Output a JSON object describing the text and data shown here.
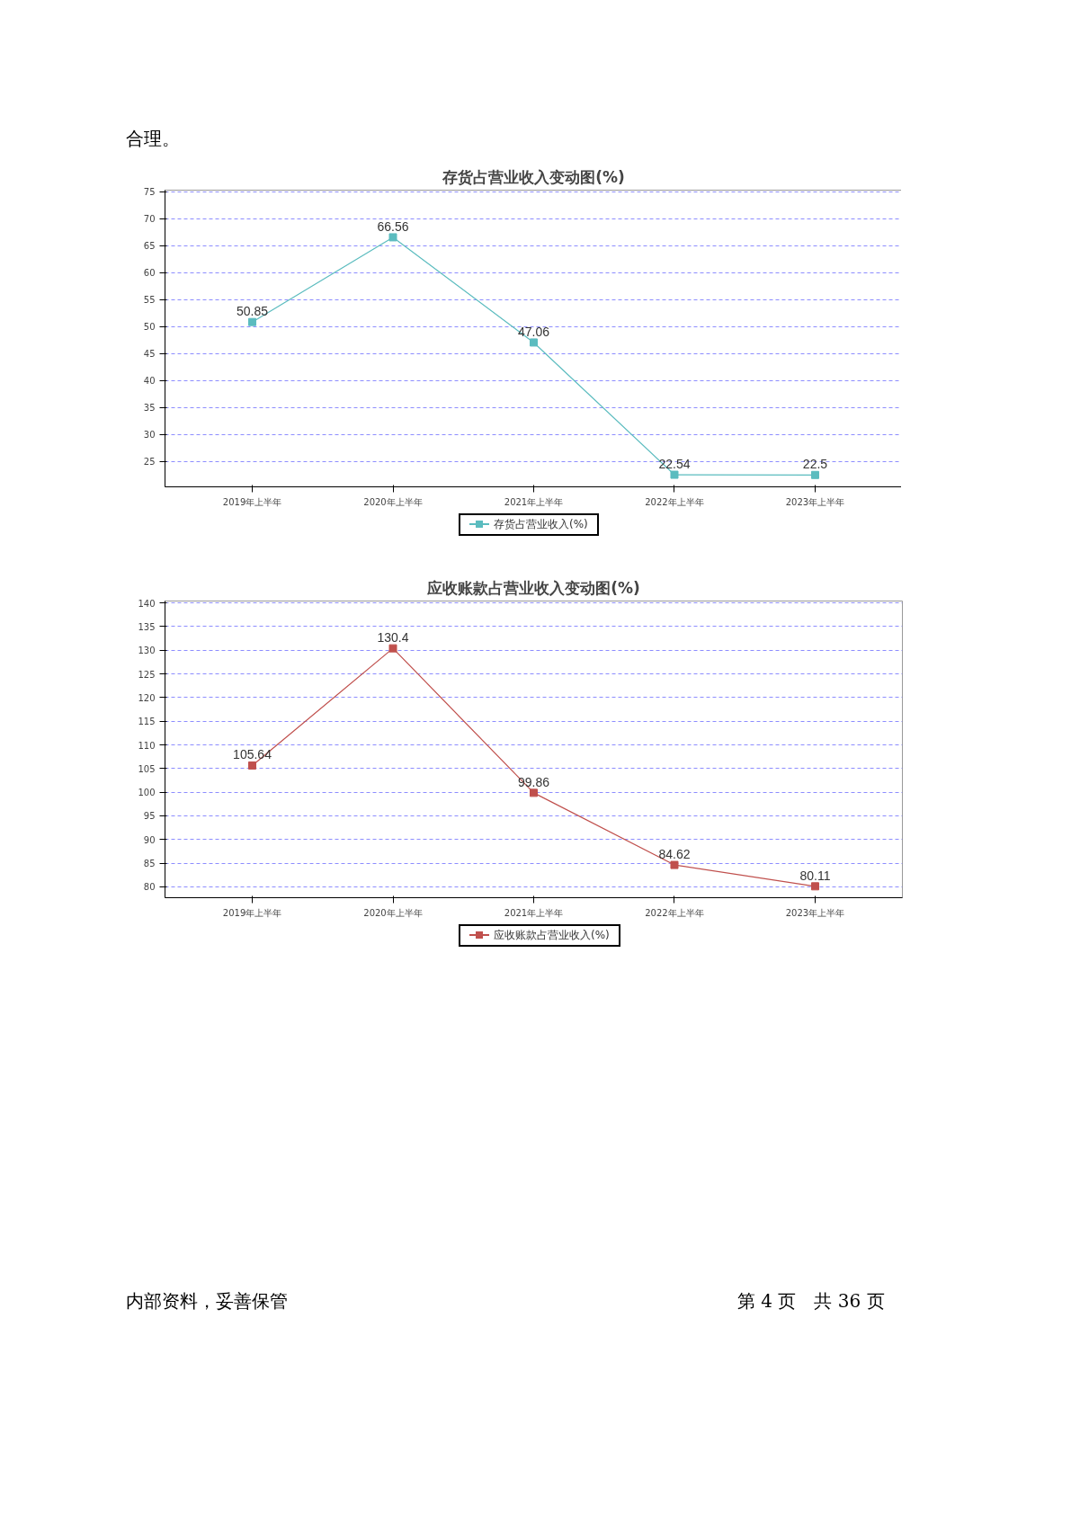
{
  "chart_data": [
    {
      "type": "line",
      "title": "存货占营业收入变动图(%)",
      "categories": [
        "2019年上半年",
        "2020年上半年",
        "2021年上半年",
        "2022年上半年",
        "2023年上半年"
      ],
      "series": [
        {
          "name": "存货占营业收入(%)",
          "color": "#5bbcbf",
          "values": [
            50.85,
            66.56,
            47.06,
            22.54,
            22.5
          ]
        }
      ],
      "ylim": [
        20.3,
        75.3
      ],
      "yticks": [
        25,
        30,
        35,
        40,
        45,
        50,
        55,
        60,
        65,
        70,
        75
      ],
      "grid": "y",
      "legend": "bottom",
      "marker": "square",
      "line_style": "solid",
      "data_labels": true,
      "annotations": [
        "合理。"
      ]
    },
    {
      "type": "line",
      "title": "应收账款占营业收入变动图(%)",
      "categories": [
        "2019年上半年",
        "2020年上半年",
        "2021年上半年",
        "2022年上半年",
        "2023年上半年"
      ],
      "series": [
        {
          "name": "应收账款占营业收入(%)",
          "color": "#c0504d",
          "values": [
            105.64,
            130.4,
            99.86,
            84.62,
            80.11
          ]
        }
      ],
      "ylim": [
        77.7,
        140.4
      ],
      "yticks": [
        80,
        85,
        90,
        95,
        100,
        105,
        110,
        115,
        120,
        125,
        130,
        135,
        140
      ],
      "grid": "y",
      "legend": "bottom",
      "marker": "square",
      "line_style": "solid",
      "data_labels": true,
      "annotations": [
        "内部资料，妥善保管",
        "第 4 页　共 36 页"
      ]
    }
  ]
}
